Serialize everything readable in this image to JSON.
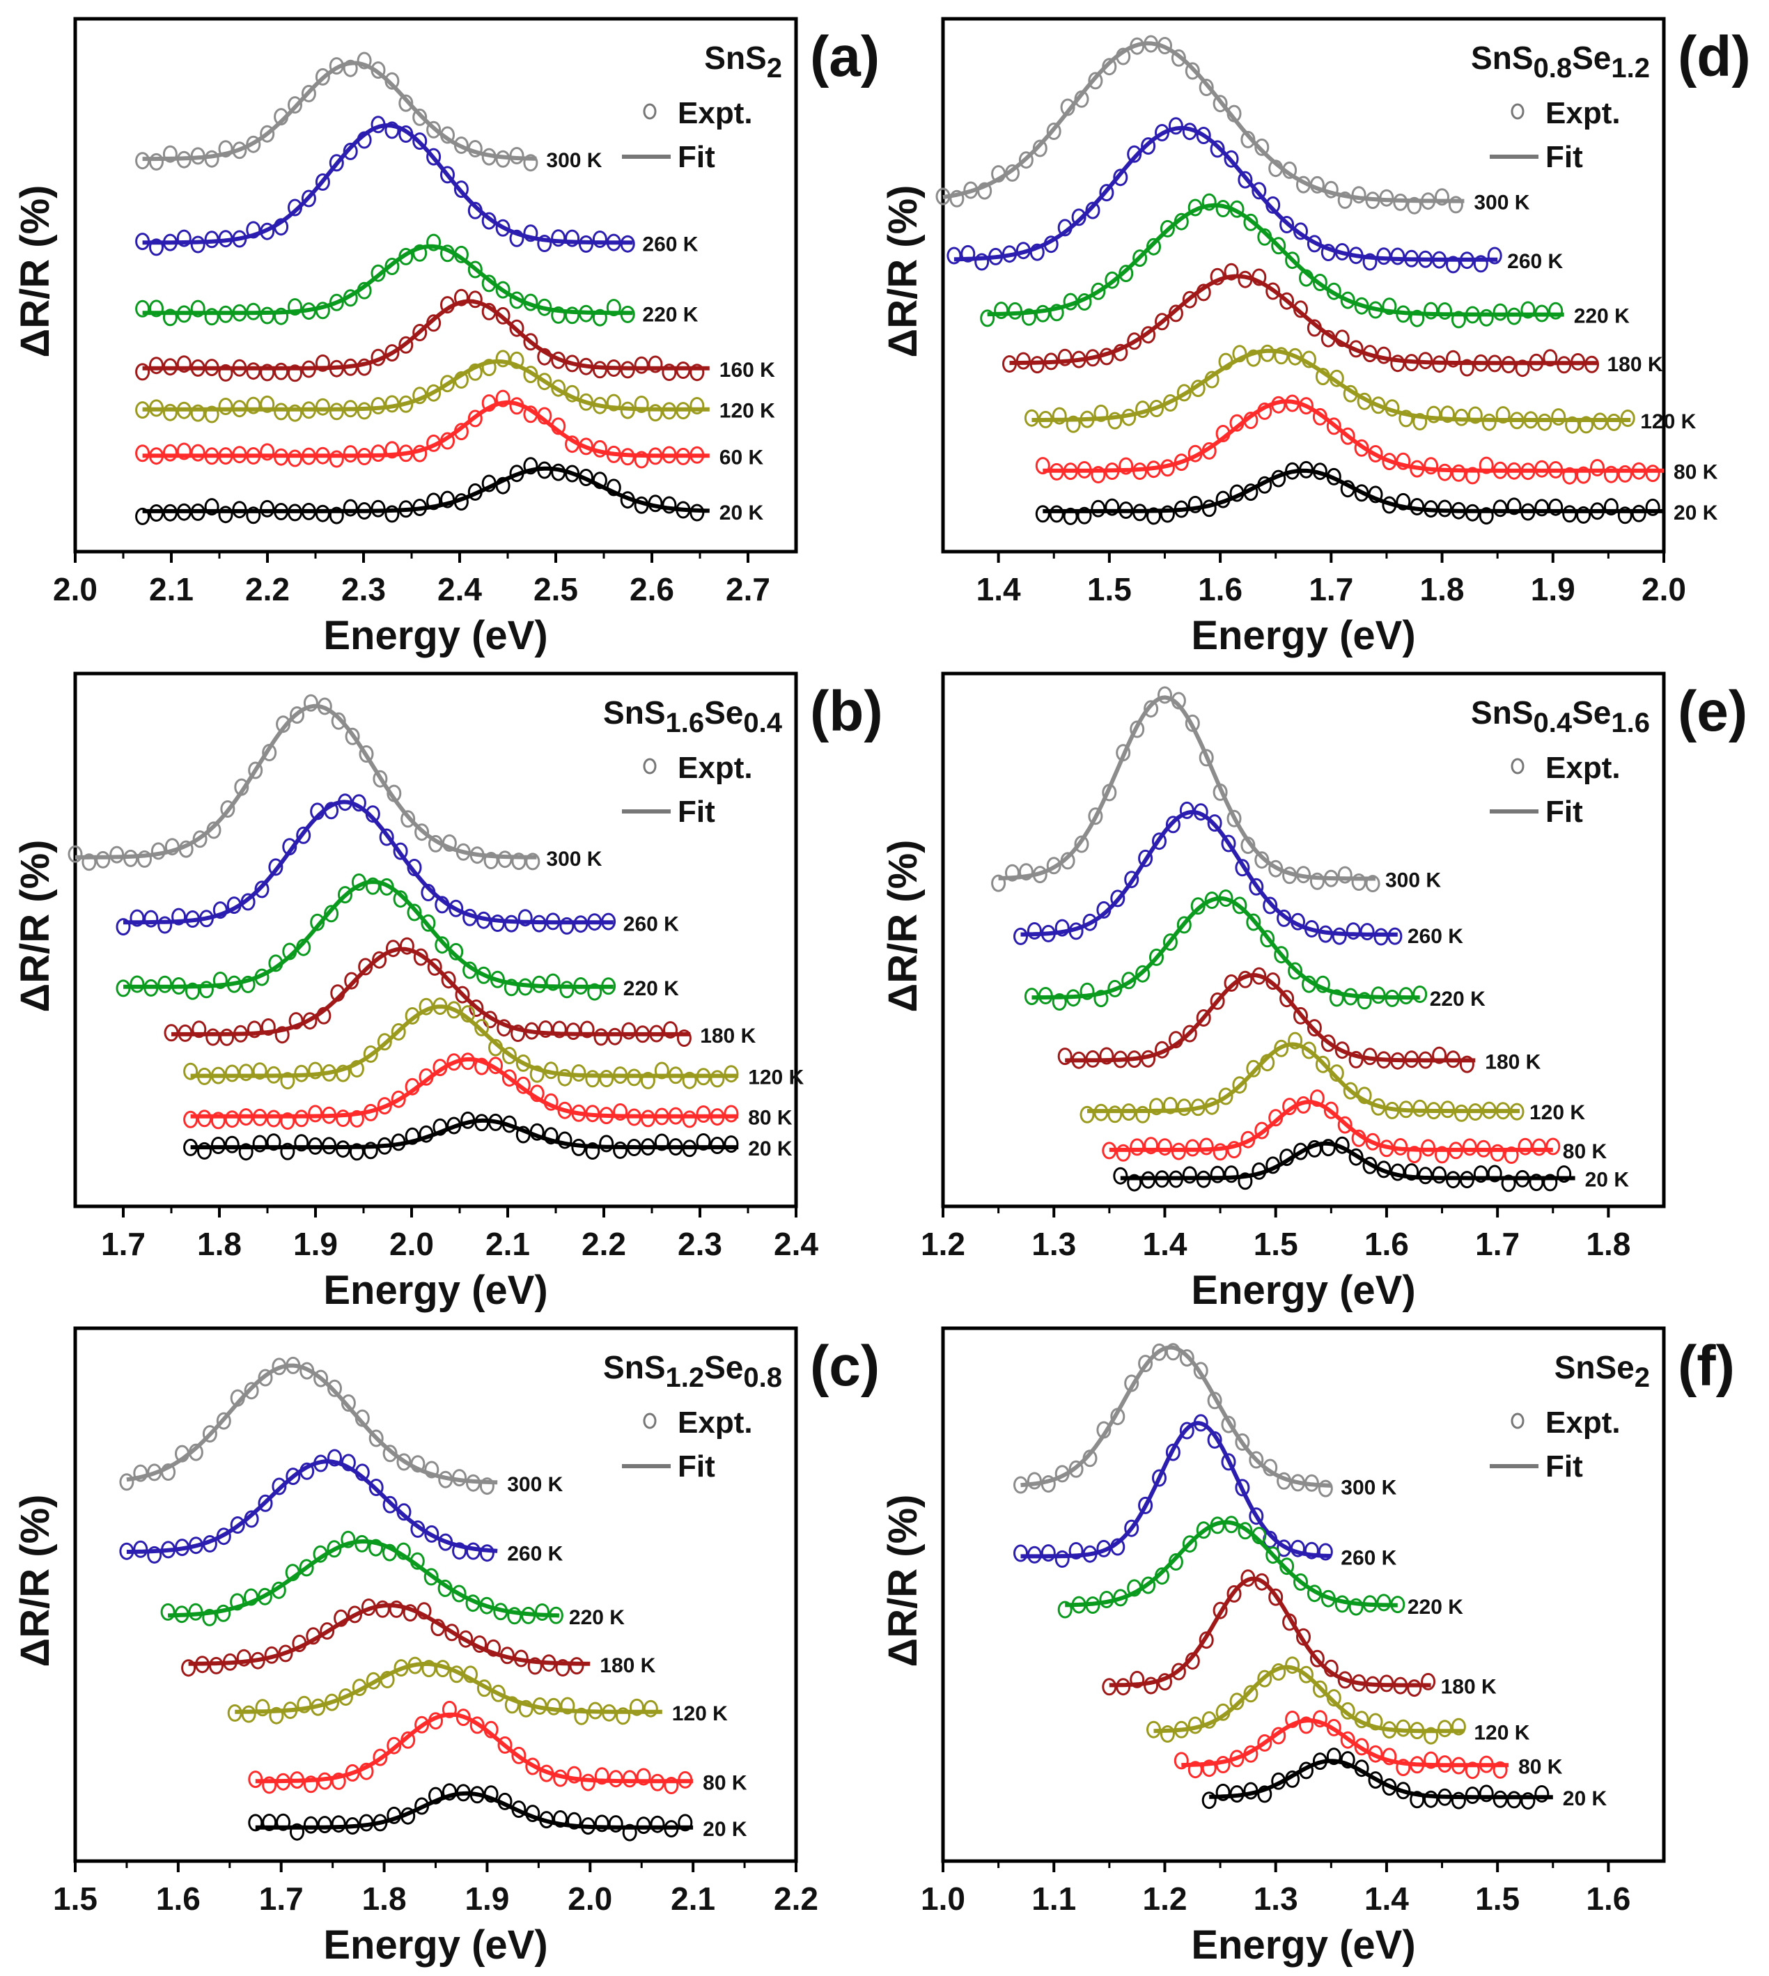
{
  "chart_data": [
    {
      "panel": "(a)",
      "type": "line",
      "title": [
        {
          "t": "SnS"
        },
        {
          "t": "2",
          "sub": true
        }
      ],
      "xlabel": "Energy (eV)",
      "ylabel": "ΔR/R (%)",
      "xlim": [
        2.0,
        2.75
      ],
      "ylim": [
        0,
        100
      ],
      "xticks": [
        "2.0",
        "2.1",
        "2.2",
        "2.3",
        "2.4",
        "2.5",
        "2.6",
        "2.7"
      ],
      "legend": {
        "expt": "Expt.",
        "fit": "Fit"
      },
      "series": [
        {
          "name": "300 K",
          "color": "#8c8c8c",
          "peak_eV": 2.29,
          "fwhm_eV": 0.13,
          "amplitude": 18,
          "offset": 73.7,
          "energy_range": [
            2.07,
            2.48
          ]
        },
        {
          "name": "260 K",
          "color": "#2a1db0",
          "peak_eV": 2.325,
          "fwhm_eV": 0.14,
          "amplitude": 22,
          "offset": 58,
          "energy_range": [
            2.07,
            2.58
          ]
        },
        {
          "name": "220 K",
          "color": "#0a9a1e",
          "peak_eV": 2.37,
          "fwhm_eV": 0.12,
          "amplitude": 12.5,
          "offset": 44.8,
          "energy_range": [
            2.07,
            2.58
          ]
        },
        {
          "name": "160 K",
          "color": "#a01818",
          "peak_eV": 2.41,
          "fwhm_eV": 0.11,
          "amplitude": 12.6,
          "offset": 34.4,
          "energy_range": [
            2.07,
            2.66
          ]
        },
        {
          "name": "120 K",
          "color": "#9a9a1e",
          "peak_eV": 2.44,
          "fwhm_eV": 0.11,
          "amplitude": 9,
          "offset": 26.7,
          "energy_range": [
            2.07,
            2.66
          ]
        },
        {
          "name": "60 K",
          "color": "#ff2a2a",
          "peak_eV": 2.45,
          "fwhm_eV": 0.1,
          "amplitude": 10,
          "offset": 18,
          "energy_range": [
            2.07,
            2.66
          ]
        },
        {
          "name": "20 K",
          "color": "#000000",
          "peak_eV": 2.49,
          "fwhm_eV": 0.13,
          "amplitude": 8,
          "offset": 7.6,
          "energy_range": [
            2.07,
            2.66
          ]
        }
      ]
    },
    {
      "panel": "(d)",
      "type": "line",
      "title": [
        {
          "t": "SnS"
        },
        {
          "t": "0.8",
          "sub": true
        },
        {
          "t": "Se"
        },
        {
          "t": "1.2",
          "sub": true
        }
      ],
      "xlabel": "Energy (eV)",
      "ylabel": "ΔR/R (%)",
      "xlim": [
        1.35,
        2.0
      ],
      "ylim": [
        0,
        100
      ],
      "xticks": [
        "1.4",
        "1.5",
        "1.6",
        "1.7",
        "1.8",
        "1.9",
        "2.0"
      ],
      "legend": {
        "expt": "Expt.",
        "fit": "Fit"
      },
      "series": [
        {
          "name": "300 K",
          "color": "#8c8c8c",
          "peak_eV": 1.535,
          "fwhm_eV": 0.16,
          "amplitude": 29.6,
          "offset": 65.8,
          "energy_range": [
            1.35,
            1.82
          ]
        },
        {
          "name": "260 K",
          "color": "#2a1db0",
          "peak_eV": 1.565,
          "fwhm_eV": 0.14,
          "amplitude": 24.7,
          "offset": 54.8,
          "energy_range": [
            1.36,
            1.85
          ]
        },
        {
          "name": "220 K",
          "color": "#0a9a1e",
          "peak_eV": 1.595,
          "fwhm_eV": 0.14,
          "amplitude": 20.5,
          "offset": 44.5,
          "energy_range": [
            1.39,
            1.91
          ]
        },
        {
          "name": "180 K",
          "color": "#a01818",
          "peak_eV": 1.615,
          "fwhm_eV": 0.13,
          "amplitude": 16.3,
          "offset": 35.4,
          "energy_range": [
            1.41,
            1.94
          ]
        },
        {
          "name": "120 K",
          "color": "#9a9a1e",
          "peak_eV": 1.645,
          "fwhm_eV": 0.13,
          "amplitude": 13,
          "offset": 24.7,
          "energy_range": [
            1.43,
            1.97
          ]
        },
        {
          "name": "80 K",
          "color": "#ff2a2a",
          "peak_eV": 1.66,
          "fwhm_eV": 0.11,
          "amplitude": 13,
          "offset": 15.2,
          "energy_range": [
            1.44,
            2.0
          ]
        },
        {
          "name": "20 K",
          "color": "#000000",
          "peak_eV": 1.675,
          "fwhm_eV": 0.1,
          "amplitude": 7.6,
          "offset": 7.6,
          "energy_range": [
            1.44,
            2.0
          ]
        }
      ]
    },
    {
      "panel": "(b)",
      "type": "line",
      "title": [
        {
          "t": "SnS"
        },
        {
          "t": "1.6",
          "sub": true
        },
        {
          "t": "Se"
        },
        {
          "t": "0.4",
          "sub": true
        }
      ],
      "xlabel": "Energy (eV)",
      "ylabel": "ΔR/R (%)",
      "xlim": [
        1.65,
        2.4
      ],
      "ylim": [
        0,
        100
      ],
      "xticks": [
        "1.7",
        "1.8",
        "1.9",
        "2.0",
        "2.1",
        "2.2",
        "2.3",
        "2.4"
      ],
      "legend": {
        "expt": "Expt.",
        "fit": "Fit"
      },
      "series": [
        {
          "name": "300 K",
          "color": "#8c8c8c",
          "peak_eV": 1.9,
          "fwhm_eV": 0.14,
          "amplitude": 28.4,
          "offset": 65.5,
          "energy_range": [
            1.65,
            2.13
          ]
        },
        {
          "name": "260 K",
          "color": "#2a1db0",
          "peak_eV": 1.93,
          "fwhm_eV": 0.13,
          "amplitude": 22.6,
          "offset": 53.3,
          "energy_range": [
            1.7,
            2.21
          ]
        },
        {
          "name": "220 K",
          "color": "#0a9a1e",
          "peak_eV": 1.96,
          "fwhm_eV": 0.13,
          "amplitude": 19.7,
          "offset": 41.2,
          "energy_range": [
            1.7,
            2.21
          ]
        },
        {
          "name": "180 K",
          "color": "#a01818",
          "peak_eV": 1.99,
          "fwhm_eV": 0.12,
          "amplitude": 16,
          "offset": 32.3,
          "energy_range": [
            1.75,
            2.29
          ]
        },
        {
          "name": "120 K",
          "color": "#9a9a1e",
          "peak_eV": 2.03,
          "fwhm_eV": 0.11,
          "amplitude": 13,
          "offset": 24.5,
          "energy_range": [
            1.77,
            2.34
          ]
        },
        {
          "name": "80 K",
          "color": "#ff2a2a",
          "peak_eV": 2.06,
          "fwhm_eV": 0.11,
          "amplitude": 10.7,
          "offset": 16.9,
          "energy_range": [
            1.77,
            2.34
          ]
        },
        {
          "name": "20 K",
          "color": "#000000",
          "peak_eV": 2.075,
          "fwhm_eV": 0.1,
          "amplitude": 5,
          "offset": 11.1,
          "energy_range": [
            1.77,
            2.34
          ]
        }
      ]
    },
    {
      "panel": "(e)",
      "type": "line",
      "title": [
        {
          "t": "SnS"
        },
        {
          "t": "0.4",
          "sub": true
        },
        {
          "t": "Se"
        },
        {
          "t": "1.6",
          "sub": true
        }
      ],
      "xlabel": "Energy (eV)",
      "ylabel": "ΔR/R (%)",
      "xlim": [
        1.2,
        1.85
      ],
      "ylim": [
        0,
        100
      ],
      "xticks": [
        "1.2",
        "1.3",
        "1.4",
        "1.5",
        "1.6",
        "1.7",
        "1.8"
      ],
      "legend": {
        "expt": "Expt.",
        "fit": "Fit"
      },
      "series": [
        {
          "name": "300 K",
          "color": "#8c8c8c",
          "peak_eV": 1.4,
          "fwhm_eV": 0.1,
          "amplitude": 34,
          "offset": 61.5,
          "energy_range": [
            1.25,
            1.59
          ]
        },
        {
          "name": "260 K",
          "color": "#2a1db0",
          "peak_eV": 1.425,
          "fwhm_eV": 0.1,
          "amplitude": 23,
          "offset": 51,
          "energy_range": [
            1.27,
            1.61
          ]
        },
        {
          "name": "220 K",
          "color": "#0a9a1e",
          "peak_eV": 1.45,
          "fwhm_eV": 0.1,
          "amplitude": 18.6,
          "offset": 39.2,
          "energy_range": [
            1.28,
            1.63
          ]
        },
        {
          "name": "180 K",
          "color": "#a01818",
          "peak_eV": 1.48,
          "fwhm_eV": 0.09,
          "amplitude": 16,
          "offset": 27.4,
          "energy_range": [
            1.31,
            1.68
          ]
        },
        {
          "name": "120 K",
          "color": "#9a9a1e",
          "peak_eV": 1.515,
          "fwhm_eV": 0.08,
          "amplitude": 12.5,
          "offset": 17.9,
          "energy_range": [
            1.33,
            1.72
          ]
        },
        {
          "name": "80 K",
          "color": "#ff2a2a",
          "peak_eV": 1.53,
          "fwhm_eV": 0.07,
          "amplitude": 9,
          "offset": 10.6,
          "energy_range": [
            1.35,
            1.75
          ]
        },
        {
          "name": "20 K",
          "color": "#000000",
          "peak_eV": 1.545,
          "fwhm_eV": 0.07,
          "amplitude": 6.5,
          "offset": 5.3,
          "energy_range": [
            1.36,
            1.77
          ]
        }
      ]
    },
    {
      "panel": "(c)",
      "type": "line",
      "title": [
        {
          "t": "SnS"
        },
        {
          "t": "1.2",
          "sub": true
        },
        {
          "t": "Se"
        },
        {
          "t": "0.8",
          "sub": true
        }
      ],
      "xlabel": "Energy (eV)",
      "ylabel": "ΔR/R (%)",
      "xlim": [
        1.5,
        2.2
      ],
      "ylim": [
        0,
        100
      ],
      "xticks": [
        "1.5",
        "1.6",
        "1.7",
        "1.8",
        "1.9",
        "2.0",
        "2.1",
        "2.2"
      ],
      "legend": {
        "expt": "Expt.",
        "fit": "Fit"
      },
      "series": [
        {
          "name": "300 K",
          "color": "#8c8c8c",
          "peak_eV": 1.71,
          "fwhm_eV": 0.14,
          "amplitude": 22,
          "offset": 71,
          "energy_range": [
            1.55,
            1.91
          ]
        },
        {
          "name": "260 K",
          "color": "#2a1db0",
          "peak_eV": 1.745,
          "fwhm_eV": 0.13,
          "amplitude": 17,
          "offset": 58,
          "energy_range": [
            1.55,
            1.91
          ]
        },
        {
          "name": "220 K",
          "color": "#0a9a1e",
          "peak_eV": 1.78,
          "fwhm_eV": 0.14,
          "amplitude": 14,
          "offset": 46,
          "energy_range": [
            1.59,
            1.97
          ]
        },
        {
          "name": "180 K",
          "color": "#a01818",
          "peak_eV": 1.805,
          "fwhm_eV": 0.13,
          "amplitude": 11,
          "offset": 37,
          "energy_range": [
            1.61,
            2.0
          ]
        },
        {
          "name": "120 K",
          "color": "#9a9a1e",
          "peak_eV": 1.84,
          "fwhm_eV": 0.12,
          "amplitude": 9,
          "offset": 28,
          "energy_range": [
            1.655,
            2.07
          ]
        },
        {
          "name": "80 K",
          "color": "#ff2a2a",
          "peak_eV": 1.865,
          "fwhm_eV": 0.11,
          "amplitude": 12.5,
          "offset": 15,
          "energy_range": [
            1.675,
            2.1
          ]
        },
        {
          "name": "20 K",
          "color": "#000000",
          "peak_eV": 1.88,
          "fwhm_eV": 0.1,
          "amplitude": 6.4,
          "offset": 6.3,
          "energy_range": [
            1.675,
            2.1
          ]
        }
      ]
    },
    {
      "panel": "(f)",
      "type": "line",
      "title": [
        {
          "t": "SnSe"
        },
        {
          "t": "2",
          "sub": true
        }
      ],
      "xlabel": "Energy (eV)",
      "ylabel": "ΔR/R (%)",
      "xlim": [
        1.0,
        1.65
      ],
      "ylim": [
        0,
        100
      ],
      "xticks": [
        "1.0",
        "1.1",
        "1.2",
        "1.3",
        "1.4",
        "1.5",
        "1.6"
      ],
      "legend": {
        "expt": "Expt.",
        "fit": "Fit"
      },
      "series": [
        {
          "name": "300 K",
          "color": "#8c8c8c",
          "peak_eV": 1.205,
          "fwhm_eV": 0.1,
          "amplitude": 26,
          "offset": 70.4,
          "energy_range": [
            1.07,
            1.35
          ]
        },
        {
          "name": "260 K",
          "color": "#2a1db0",
          "peak_eV": 1.23,
          "fwhm_eV": 0.08,
          "amplitude": 25,
          "offset": 57.2,
          "energy_range": [
            1.07,
            1.35
          ]
        },
        {
          "name": "220 K",
          "color": "#0a9a1e",
          "peak_eV": 1.255,
          "fwhm_eV": 0.1,
          "amplitude": 15.6,
          "offset": 48,
          "energy_range": [
            1.11,
            1.41
          ]
        },
        {
          "name": "180 K",
          "color": "#a01818",
          "peak_eV": 1.28,
          "fwhm_eV": 0.08,
          "amplitude": 20,
          "offset": 33,
          "energy_range": [
            1.15,
            1.44
          ]
        },
        {
          "name": "120 K",
          "color": "#9a9a1e",
          "peak_eV": 1.31,
          "fwhm_eV": 0.08,
          "amplitude": 12,
          "offset": 24.4,
          "energy_range": [
            1.19,
            1.47
          ]
        },
        {
          "name": "80 K",
          "color": "#ff2a2a",
          "peak_eV": 1.33,
          "fwhm_eV": 0.08,
          "amplitude": 8.4,
          "offset": 18,
          "energy_range": [
            1.215,
            1.51
          ]
        },
        {
          "name": "20 K",
          "color": "#000000",
          "peak_eV": 1.35,
          "fwhm_eV": 0.08,
          "amplitude": 6.8,
          "offset": 12,
          "energy_range": [
            1.24,
            1.55
          ]
        }
      ]
    }
  ]
}
